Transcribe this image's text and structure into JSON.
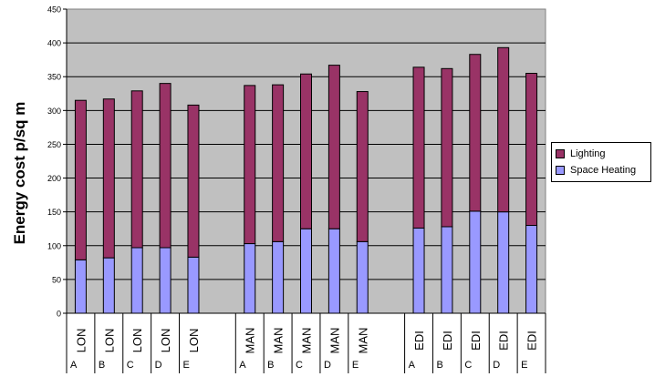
{
  "chart_data": {
    "type": "bar",
    "stacked": true,
    "title": "",
    "ylabel": "Energy cost p/sq m",
    "xlabel": "",
    "ylim": [
      0,
      450
    ],
    "yticks": [
      0,
      50,
      100,
      150,
      200,
      250,
      300,
      350,
      400,
      450
    ],
    "grid": true,
    "legend_position": "right",
    "groups": [
      {
        "name": "LON",
        "letters": [
          "A",
          "B",
          "C",
          "D",
          "E"
        ]
      },
      {
        "name": "MAN",
        "letters": [
          "A",
          "B",
          "C",
          "D",
          "E"
        ]
      },
      {
        "name": "EDI",
        "letters": [
          "A",
          "B",
          "C",
          "D",
          "E"
        ]
      }
    ],
    "series": [
      {
        "name": "Space Heating",
        "color": "#9999ff",
        "values": [
          79,
          82,
          97,
          97,
          83,
          103,
          106,
          125,
          125,
          106,
          126,
          128,
          151,
          150,
          130
        ]
      },
      {
        "name": "Lighting",
        "color": "#993366",
        "values": [
          236,
          235,
          232,
          243,
          225,
          234,
          232,
          229,
          242,
          222,
          238,
          234,
          232,
          243,
          225
        ]
      }
    ],
    "legend": [
      "Lighting",
      "Space Heating"
    ],
    "colors": {
      "plot_background": "#c0c0c0",
      "gridline": "#000000"
    }
  }
}
